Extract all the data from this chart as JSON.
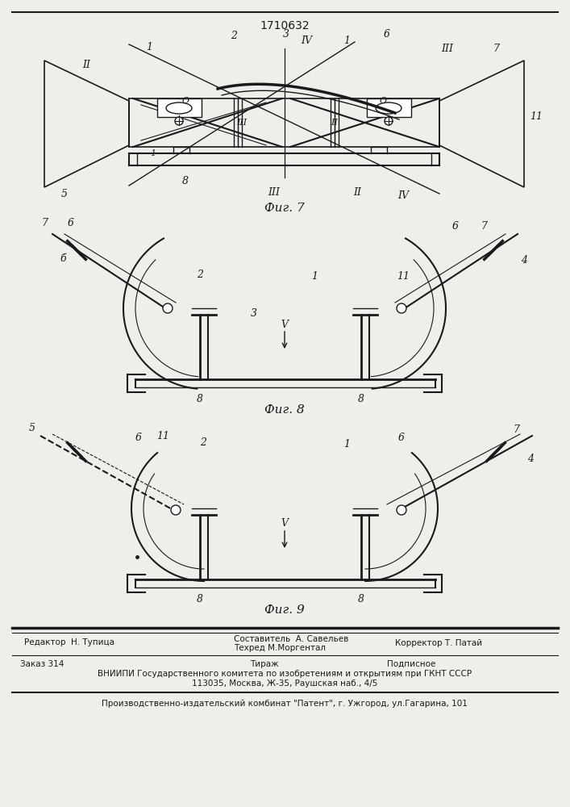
{
  "patent_number": "1710632",
  "fig7_label": "Фиг. 7",
  "fig8_label": "Фиг. 8",
  "fig9_label": "Фиг. 9",
  "footer_line1_left": "Редактор  Н. Тупица",
  "footer_line1_mid1": "Составитель  А. Савельев",
  "footer_line1_mid2": "Техред М.Моргентал",
  "footer_line1_right": "Корректор Т. Патай",
  "footer_line2_left": "Заказ 314",
  "footer_line2_mid": "Тираж",
  "footer_line2_right": "Подписное",
  "footer_line3": "ВНИИПИ Государственного комитета по изобретениям и открытиям при ГКНТ СССР",
  "footer_line4": "113035, Москва, Ж-35, Раушская наб., 4/5",
  "footer_line5": "Производственно-издательский комбинат \"Патент\", г. Ужгород, ул.Гагарина, 101",
  "bg_color": "#f0eeea",
  "line_color": "#1a1a1a",
  "text_color": "#1a1a1a"
}
